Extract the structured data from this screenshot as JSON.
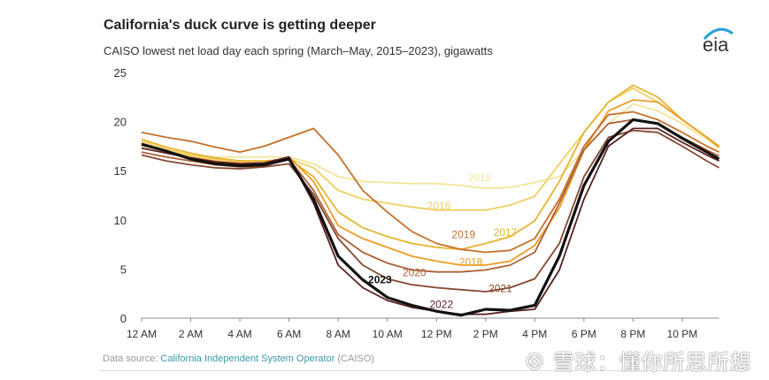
{
  "chart_data": {
    "type": "line",
    "title": "California's duck curve is getting deeper",
    "subtitle": "CAISO lowest net load day each spring (March–May, 2015–2023), gigawatts",
    "xlabel": "",
    "ylabel": "",
    "ylim": [
      0,
      25
    ],
    "xlim_hours": [
      0,
      23.5
    ],
    "yticks": [
      "0",
      "5",
      "10",
      "15",
      "20",
      "25"
    ],
    "xtick_labels": [
      "12 AM",
      "2 AM",
      "4 AM",
      "6 AM",
      "8 AM",
      "10 AM",
      "12 PM",
      "2 PM",
      "4 PM",
      "6 PM",
      "8 PM",
      "10 PM"
    ],
    "grid": false,
    "x": [
      0,
      1,
      2,
      3,
      4,
      5,
      6,
      7,
      8,
      9,
      10,
      11,
      12,
      13,
      14,
      15,
      16,
      17,
      18,
      19,
      20,
      21,
      22,
      23,
      23.5
    ],
    "series": [
      {
        "name": "2015",
        "color": "#f2e59a",
        "label_at": [
          13.75,
          14.4
        ],
        "values": [
          17.5,
          17.0,
          16.6,
          16.4,
          16.4,
          16.4,
          16.4,
          15.7,
          14.4,
          13.9,
          13.8,
          13.7,
          13.7,
          13.5,
          13.2,
          13.3,
          13.8,
          14.4,
          17.1,
          19.8,
          21.8,
          21.1,
          19.8,
          18.2,
          17.3
        ]
      },
      {
        "name": "2016",
        "color": "#efd062",
        "label_at": [
          12.1,
          11.5
        ],
        "values": [
          18.0,
          17.2,
          16.6,
          16.2,
          16.0,
          16.0,
          16.2,
          15.3,
          13.0,
          12.1,
          11.7,
          11.3,
          11.0,
          11.0,
          11.0,
          11.5,
          12.4,
          15.7,
          18.9,
          22.0,
          23.4,
          22.0,
          20.2,
          18.4,
          17.5
        ]
      },
      {
        "name": "2017",
        "color": "#e6b42e",
        "label_at": [
          14.8,
          8.8
        ],
        "values": [
          18.2,
          17.4,
          16.8,
          16.3,
          16.0,
          16.0,
          16.2,
          14.4,
          10.8,
          9.2,
          8.3,
          7.6,
          7.2,
          7.0,
          7.6,
          8.3,
          9.9,
          13.9,
          18.9,
          22.0,
          23.7,
          22.5,
          20.2,
          18.4,
          17.5
        ]
      },
      {
        "name": "2018",
        "color": "#ee9d22",
        "label_at": [
          13.4,
          5.8
        ],
        "values": [
          17.8,
          17.0,
          16.4,
          16.0,
          15.8,
          15.8,
          16.4,
          13.9,
          9.4,
          8.1,
          7.2,
          6.3,
          5.8,
          5.4,
          5.4,
          5.8,
          7.4,
          11.2,
          17.1,
          21.1,
          22.2,
          22.0,
          20.2,
          18.4,
          17.4
        ]
      },
      {
        "name": "2019",
        "color": "#c6702c",
        "label_at": [
          13.1,
          8.6
        ],
        "values": [
          18.9,
          18.4,
          18.0,
          17.4,
          16.9,
          17.5,
          18.4,
          19.3,
          16.6,
          13.0,
          10.8,
          8.8,
          7.6,
          7.0,
          6.7,
          6.9,
          8.1,
          12.1,
          17.5,
          20.7,
          21.0,
          20.2,
          18.9,
          17.5,
          16.9
        ]
      },
      {
        "name": "2020",
        "color": "#ad6034",
        "label_at": [
          11.1,
          4.7
        ],
        "values": [
          16.9,
          16.4,
          16.0,
          15.6,
          15.4,
          15.5,
          16.2,
          13.0,
          8.5,
          6.7,
          5.6,
          4.9,
          4.7,
          4.7,
          4.9,
          5.4,
          6.7,
          11.7,
          17.1,
          19.8,
          20.2,
          19.8,
          18.4,
          17.1,
          16.5
        ]
      },
      {
        "name": "2021",
        "color": "#864830",
        "label_at": [
          14.6,
          3.1
        ],
        "values": [
          16.6,
          16.0,
          15.6,
          15.3,
          15.2,
          15.4,
          15.7,
          12.6,
          8.1,
          5.4,
          4.0,
          3.4,
          3.1,
          2.9,
          2.7,
          3.1,
          4.0,
          7.6,
          14.4,
          18.4,
          19.1,
          18.9,
          17.5,
          16.0,
          15.3
        ]
      },
      {
        "name": "2022",
        "color": "#5a1f1f",
        "label_at": [
          12.2,
          1.5
        ],
        "values": [
          17.3,
          16.8,
          16.3,
          15.9,
          15.7,
          15.8,
          16.4,
          11.7,
          5.4,
          3.1,
          1.8,
          1.1,
          0.7,
          0.4,
          0.4,
          0.7,
          0.9,
          4.9,
          12.1,
          17.5,
          19.3,
          19.3,
          17.9,
          16.6,
          16.0
        ]
      },
      {
        "name": "2023",
        "color": "#111111",
        "label_at": [
          9.7,
          4.0
        ],
        "values": [
          17.7,
          17.0,
          16.2,
          15.7,
          15.5,
          15.6,
          16.2,
          12.1,
          6.3,
          3.9,
          2.1,
          1.3,
          0.7,
          0.3,
          0.9,
          0.8,
          1.3,
          6.3,
          13.5,
          18.0,
          20.2,
          19.8,
          18.3,
          16.9,
          16.2
        ]
      }
    ]
  },
  "logo_text": "eia",
  "source": {
    "prefix": "Data source: ",
    "link": "California Independent System Operator",
    "suffix": " (CAISO)"
  },
  "watermark": "雪球：懂你所思所想"
}
